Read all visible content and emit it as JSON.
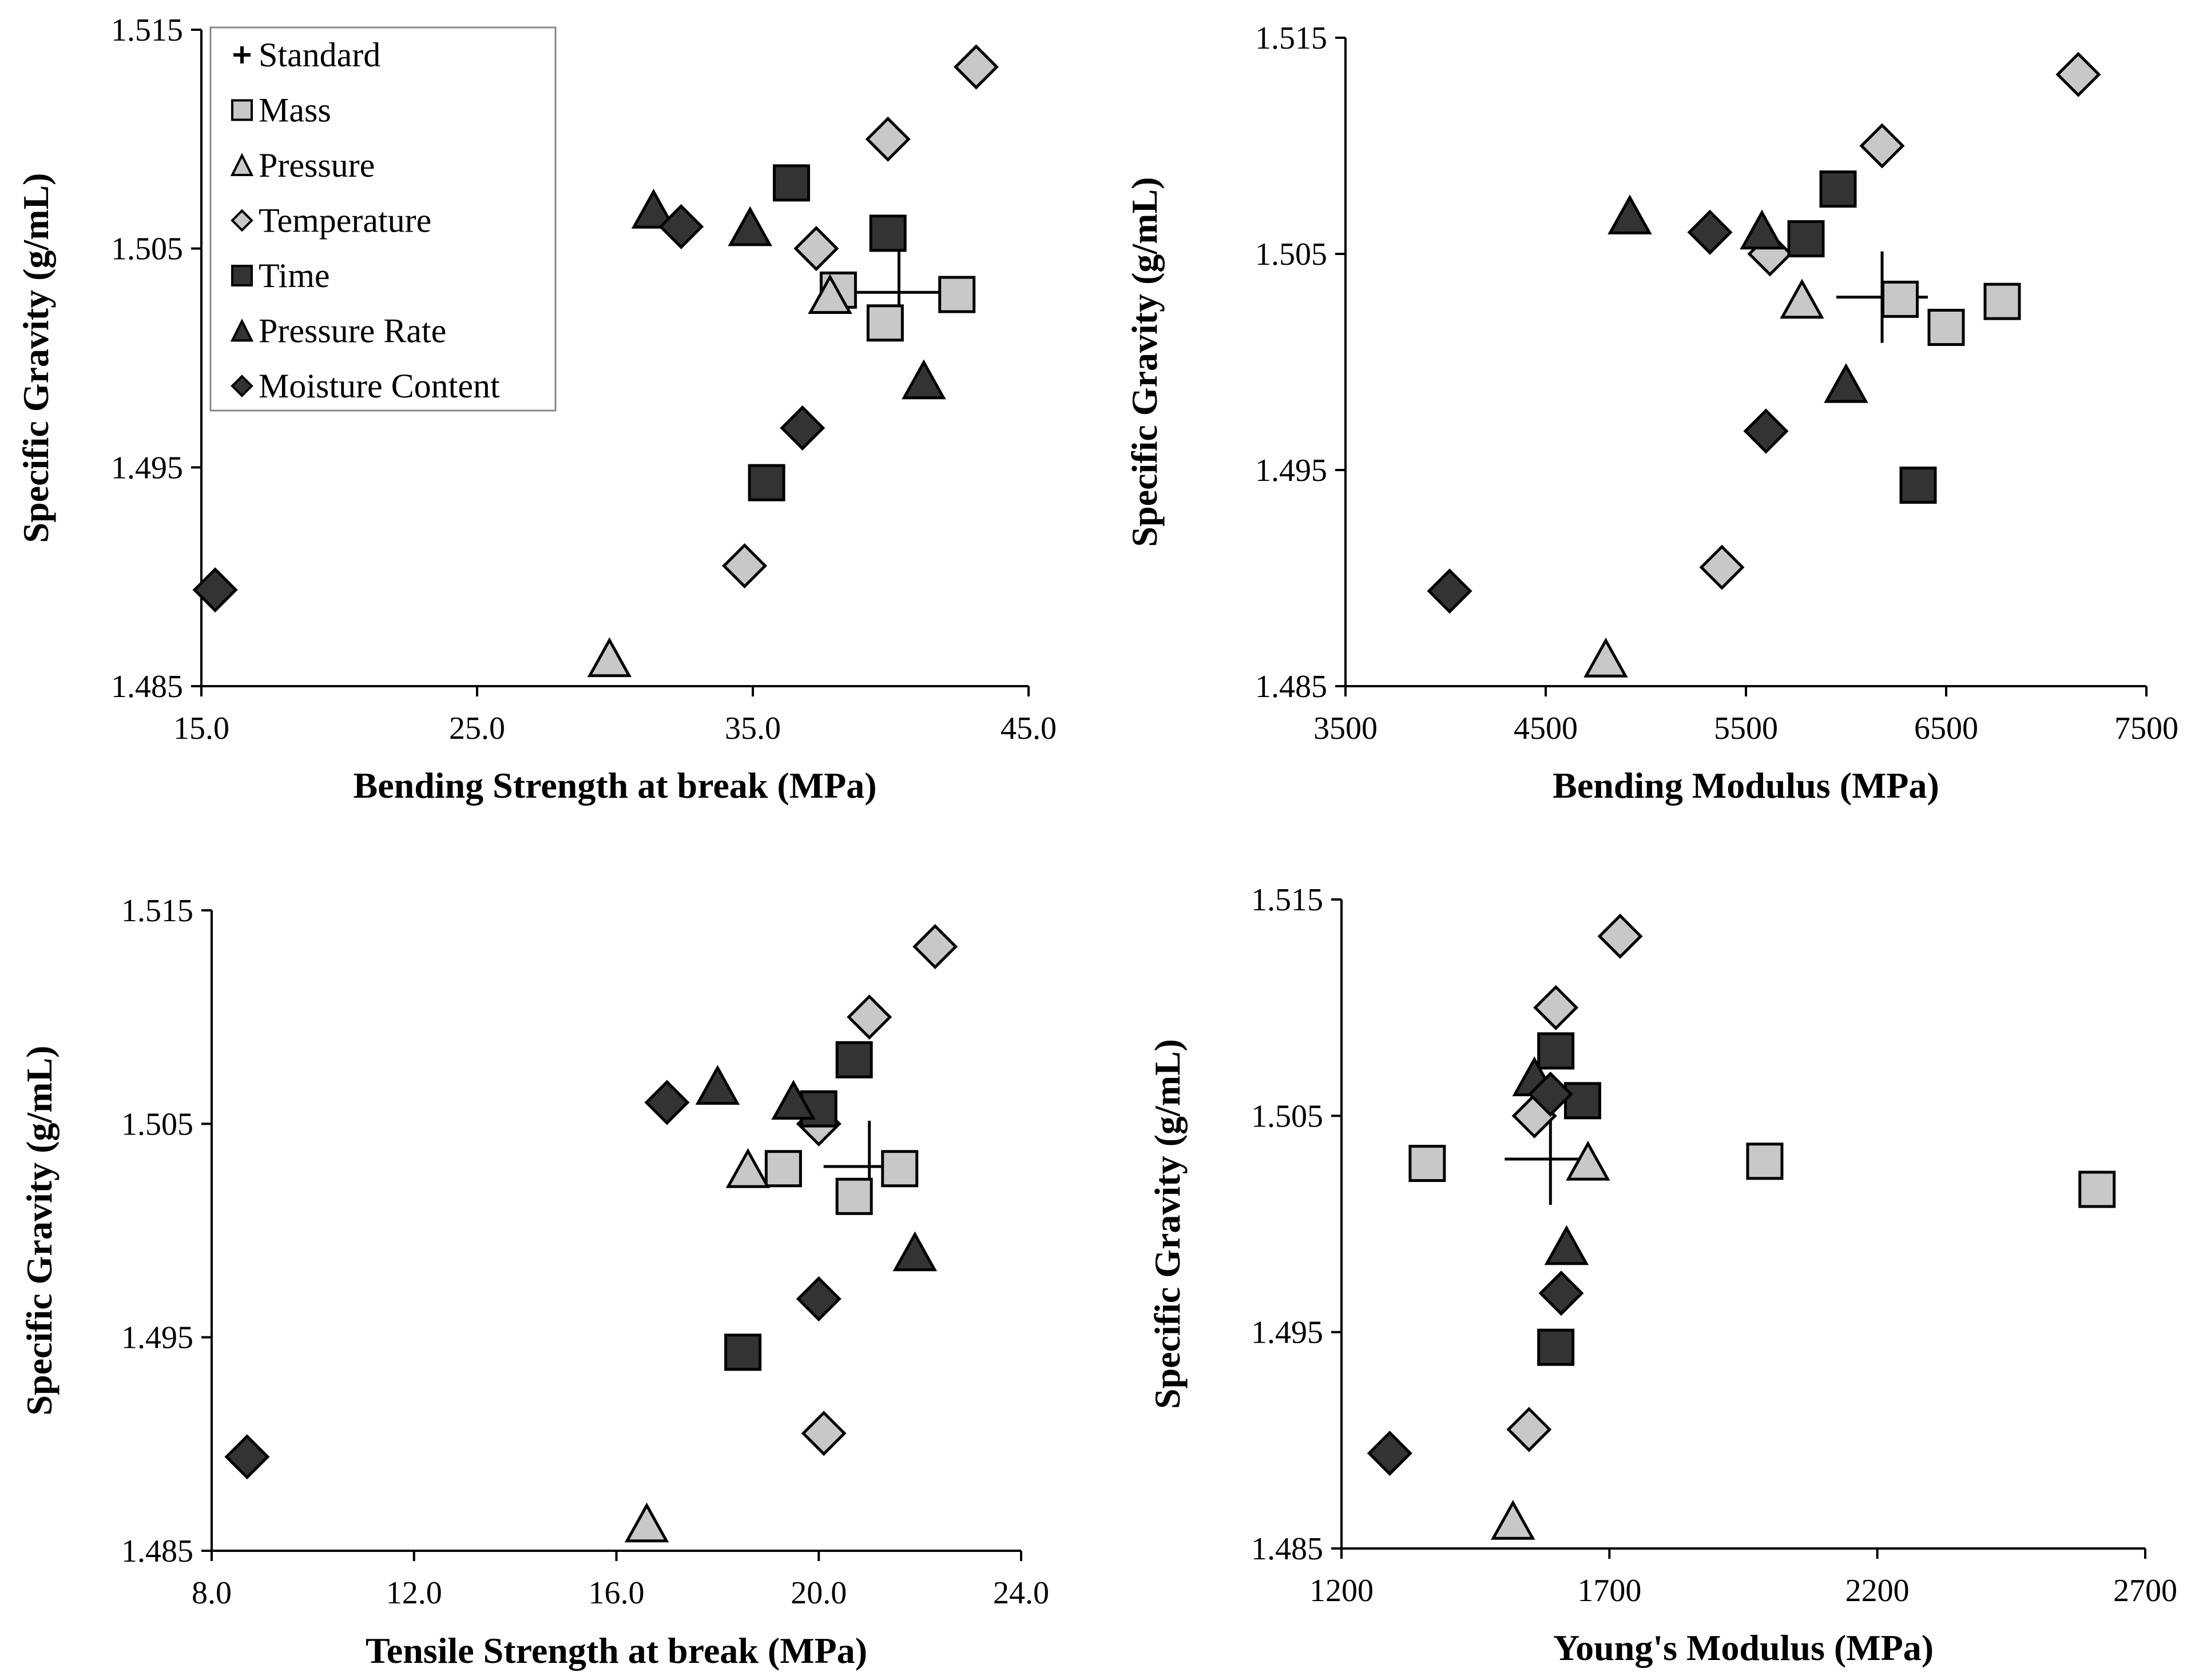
{
  "figure": {
    "layout": "2x2 grid of scatter plots"
  },
  "styles": {
    "Standard": {
      "marker": "plus",
      "fill": "none",
      "stroke": "#000000"
    },
    "Mass": {
      "marker": "square",
      "fill": "#c8c8c8",
      "stroke": "#000000"
    },
    "Pressure": {
      "marker": "triangle",
      "fill": "#c8c8c8",
      "stroke": "#000000"
    },
    "Temperature": {
      "marker": "diamond",
      "fill": "#c8c8c8",
      "stroke": "#000000"
    },
    "Time": {
      "marker": "square",
      "fill": "#333333",
      "stroke": "#000000"
    },
    "Pressure Rate": {
      "marker": "triangle",
      "fill": "#333333",
      "stroke": "#000000"
    },
    "Moisture Content": {
      "marker": "diamond",
      "fill": "#333333",
      "stroke": "#000000"
    }
  },
  "legend": {
    "location": "upper-left of first chart",
    "entries": [
      "Standard",
      "Mass",
      "Pressure",
      "Temperature",
      "Time",
      "Pressure Rate",
      "Moisture Content"
    ]
  },
  "chart_data": [
    {
      "type": "scatter",
      "title": "",
      "xlabel": "Bending Strength at break (MPa)",
      "ylabel": "Specific Gravity (g/mL)",
      "xlim": [
        15.0,
        45.0
      ],
      "ylim": [
        1.485,
        1.515
      ],
      "x_ticks": [
        "15.0",
        "25.0",
        "35.0",
        "45.0"
      ],
      "y_ticks": [
        "1.485",
        "1.495",
        "1.505",
        "1.515"
      ],
      "x_tick_values": [
        15,
        25,
        35,
        45
      ],
      "y_tick_values": [
        1.485,
        1.495,
        1.505,
        1.515
      ],
      "grid": false,
      "series": [
        {
          "name": "Standard",
          "points": [
            [
              40.3,
              1.503
            ]
          ]
        },
        {
          "name": "Mass",
          "points": [
            [
              38.1,
              1.5031
            ],
            [
              39.8,
              1.5016
            ],
            [
              42.4,
              1.5029
            ]
          ]
        },
        {
          "name": "Pressure",
          "points": [
            [
              37.8,
              1.5028
            ],
            [
              29.8,
              1.4862
            ]
          ]
        },
        {
          "name": "Temperature",
          "points": [
            [
              43.1,
              1.5133
            ],
            [
              39.9,
              1.51
            ],
            [
              37.3,
              1.505
            ],
            [
              34.7,
              1.4905
            ]
          ]
        },
        {
          "name": "Time",
          "points": [
            [
              36.4,
              1.508
            ],
            [
              39.9,
              1.5057
            ],
            [
              35.5,
              1.4943
            ]
          ]
        },
        {
          "name": "Pressure Rate",
          "points": [
            [
              31.4,
              1.5067
            ],
            [
              34.9,
              1.5059
            ],
            [
              41.2,
              1.4989
            ]
          ]
        },
        {
          "name": "Moisture Content",
          "points": [
            [
              32.4,
              1.506
            ],
            [
              36.8,
              1.4968
            ],
            [
              15.5,
              1.4894
            ]
          ]
        }
      ]
    },
    {
      "type": "scatter",
      "title": "",
      "xlabel": "Bending Modulus (MPa)",
      "ylabel": "Specific Gravity (g/mL)",
      "xlim": [
        3500,
        7500
      ],
      "ylim": [
        1.485,
        1.515
      ],
      "x_ticks": [
        "3500",
        "4500",
        "5500",
        "6500",
        "7500"
      ],
      "y_ticks": [
        "1.485",
        "1.495",
        "1.505",
        "1.515"
      ],
      "x_tick_values": [
        3500,
        4500,
        5500,
        6500,
        7500
      ],
      "y_tick_values": [
        1.485,
        1.495,
        1.505,
        1.515
      ],
      "grid": false,
      "series": [
        {
          "name": "Standard",
          "points": [
            [
              6180,
              1.503
            ]
          ]
        },
        {
          "name": "Mass",
          "points": [
            [
              6270,
              1.5029
            ],
            [
              6500,
              1.5016
            ],
            [
              6780,
              1.5028
            ]
          ]
        },
        {
          "name": "Pressure",
          "points": [
            [
              5780,
              1.5028
            ],
            [
              4800,
              1.4862
            ]
          ]
        },
        {
          "name": "Temperature",
          "points": [
            [
              7160,
              1.5133
            ],
            [
              6180,
              1.51
            ],
            [
              5620,
              1.505
            ],
            [
              5380,
              1.4905
            ]
          ]
        },
        {
          "name": "Time",
          "points": [
            [
              5960,
              1.508
            ],
            [
              5800,
              1.5057
            ],
            [
              6360,
              1.4943
            ]
          ]
        },
        {
          "name": "Pressure Rate",
          "points": [
            [
              4920,
              1.5067
            ],
            [
              5580,
              1.506
            ],
            [
              6000,
              1.4989
            ]
          ]
        },
        {
          "name": "Moisture Content",
          "points": [
            [
              5320,
              1.506
            ],
            [
              5600,
              1.4968
            ],
            [
              4020,
              1.4894
            ]
          ]
        }
      ]
    },
    {
      "type": "scatter",
      "title": "",
      "xlabel": "Tensile Strength at break (MPa)",
      "ylabel": "Specific Gravity (g/mL)",
      "xlim": [
        8.0,
        24.0
      ],
      "ylim": [
        1.485,
        1.515
      ],
      "x_ticks": [
        "8.0",
        "12.0",
        "16.0",
        "20.0",
        "24.0"
      ],
      "y_ticks": [
        "1.485",
        "1.495",
        "1.505",
        "1.515"
      ],
      "x_tick_values": [
        8,
        12,
        16,
        20,
        24
      ],
      "y_tick_values": [
        1.485,
        1.495,
        1.505,
        1.515
      ],
      "grid": false,
      "series": [
        {
          "name": "Standard",
          "points": [
            [
              21.0,
              1.503
            ]
          ]
        },
        {
          "name": "Mass",
          "points": [
            [
              19.3,
              1.5029
            ],
            [
              20.7,
              1.5016
            ],
            [
              21.6,
              1.5029
            ]
          ]
        },
        {
          "name": "Pressure",
          "points": [
            [
              18.6,
              1.5028
            ],
            [
              16.6,
              1.4862
            ]
          ]
        },
        {
          "name": "Temperature",
          "points": [
            [
              22.3,
              1.5133
            ],
            [
              21.0,
              1.51
            ],
            [
              20.0,
              1.505
            ],
            [
              20.1,
              1.4905
            ]
          ]
        },
        {
          "name": "Time",
          "points": [
            [
              20.7,
              1.508
            ],
            [
              20.0,
              1.5057
            ],
            [
              18.5,
              1.4943
            ]
          ]
        },
        {
          "name": "Pressure Rate",
          "points": [
            [
              18.0,
              1.5067
            ],
            [
              19.5,
              1.506
            ],
            [
              21.9,
              1.4989
            ]
          ]
        },
        {
          "name": "Moisture Content",
          "points": [
            [
              17.0,
              1.506
            ],
            [
              20.0,
              1.4968
            ],
            [
              8.7,
              1.4894
            ]
          ]
        }
      ]
    },
    {
      "type": "scatter",
      "title": "",
      "xlabel": "Young's Modulus (MPa)",
      "ylabel": "Specific Gravity (g/mL)",
      "xlim": [
        1200,
        2700
      ],
      "ylim": [
        1.485,
        1.515
      ],
      "x_ticks": [
        "1200",
        "1700",
        "2200",
        "2700"
      ],
      "y_ticks": [
        "1.485",
        "1.495",
        "1.505",
        "1.515"
      ],
      "x_tick_values": [
        1200,
        1700,
        2200,
        2700
      ],
      "y_tick_values": [
        1.485,
        1.495,
        1.505,
        1.515
      ],
      "grid": false,
      "series": [
        {
          "name": "Standard",
          "points": [
            [
              1590,
              1.503
            ]
          ]
        },
        {
          "name": "Mass",
          "points": [
            [
              1360,
              1.5028
            ],
            [
              1990,
              1.5029
            ],
            [
              2610,
              1.5016
            ]
          ]
        },
        {
          "name": "Pressure",
          "points": [
            [
              1660,
              1.5028
            ],
            [
              1520,
              1.4862
            ]
          ]
        },
        {
          "name": "Temperature",
          "points": [
            [
              1720,
              1.5133
            ],
            [
              1600,
              1.51
            ],
            [
              1560,
              1.505
            ],
            [
              1550,
              1.4905
            ]
          ]
        },
        {
          "name": "Time",
          "points": [
            [
              1600,
              1.508
            ],
            [
              1650,
              1.5057
            ],
            [
              1600,
              1.4943
            ]
          ]
        },
        {
          "name": "Pressure Rate",
          "points": [
            [
              1560,
              1.5067
            ],
            [
              1620,
              1.4989
            ]
          ]
        },
        {
          "name": "Moisture Content",
          "points": [
            [
              1590,
              1.506
            ],
            [
              1610,
              1.4968
            ],
            [
              1290,
              1.4894
            ]
          ]
        }
      ]
    }
  ]
}
